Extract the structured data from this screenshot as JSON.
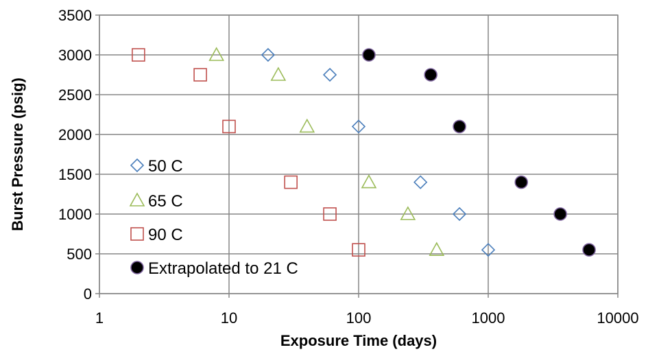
{
  "chart_data": {
    "type": "scatter",
    "title": "",
    "xlabel": "Exposure Time (days)",
    "ylabel": "Burst Pressure (psig)",
    "xscale": "log",
    "xlim": [
      1,
      10000
    ],
    "ylim": [
      0,
      3500
    ],
    "x_ticks": [
      "1",
      "10",
      "100",
      "1000",
      "10000"
    ],
    "y_ticks": [
      "0",
      "500",
      "1000",
      "1500",
      "2000",
      "2500",
      "3000",
      "3500"
    ],
    "grid": true,
    "legend_position": "left-center inside plot",
    "series": [
      {
        "name": "50 C",
        "marker": "diamond-open",
        "color": "#4a7ebb",
        "points": [
          [
            20,
            3000
          ],
          [
            60,
            2750
          ],
          [
            100,
            2100
          ],
          [
            300,
            1400
          ],
          [
            600,
            1000
          ],
          [
            1000,
            550
          ]
        ]
      },
      {
        "name": "65 C",
        "marker": "triangle-open",
        "color": "#9bbb59",
        "points": [
          [
            8,
            3000
          ],
          [
            24,
            2750
          ],
          [
            40,
            2100
          ],
          [
            120,
            1400
          ],
          [
            240,
            1000
          ],
          [
            400,
            550
          ]
        ]
      },
      {
        "name": "90 C",
        "marker": "square-open",
        "color": "#c0504d",
        "points": [
          [
            2,
            3000
          ],
          [
            6,
            2750
          ],
          [
            10,
            2100
          ],
          [
            30,
            1400
          ],
          [
            60,
            1000
          ],
          [
            100,
            550
          ]
        ]
      },
      {
        "name": "Extrapolated to 21 C",
        "marker": "circle-filled",
        "color": "#000000",
        "edge_color": "#7e649e",
        "points": [
          [
            120,
            3000
          ],
          [
            360,
            2750
          ],
          [
            600,
            2100
          ],
          [
            1800,
            1400
          ],
          [
            3600,
            1000
          ],
          [
            6000,
            550
          ]
        ]
      }
    ]
  }
}
